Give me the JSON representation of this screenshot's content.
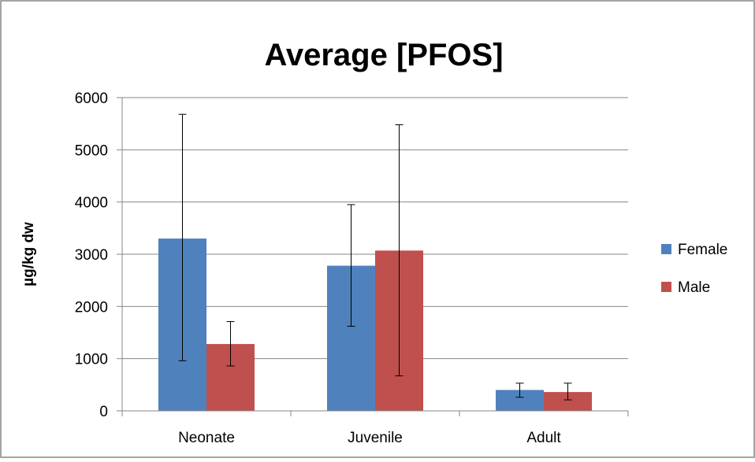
{
  "chart_data": {
    "type": "bar",
    "title": "Average [PFOS]",
    "xlabel": "",
    "ylabel": "µg/kg dw",
    "ylim": [
      0,
      6000
    ],
    "yticks": [
      0,
      1000,
      2000,
      3000,
      4000,
      5000,
      6000
    ],
    "grid": true,
    "legend_position": "right",
    "categories": [
      "Neonate",
      "Juvenile",
      "Adult"
    ],
    "series": [
      {
        "name": "Female",
        "color": "#4f81bd",
        "values": [
          3300,
          2780,
          400
        ],
        "error_low": [
          960,
          1620,
          260
        ],
        "error_high": [
          5680,
          3950,
          530
        ]
      },
      {
        "name": "Male",
        "color": "#c0504d",
        "values": [
          1280,
          3070,
          360
        ],
        "error_low": [
          860,
          670,
          210
        ],
        "error_high": [
          1710,
          5480,
          530
        ]
      }
    ]
  }
}
